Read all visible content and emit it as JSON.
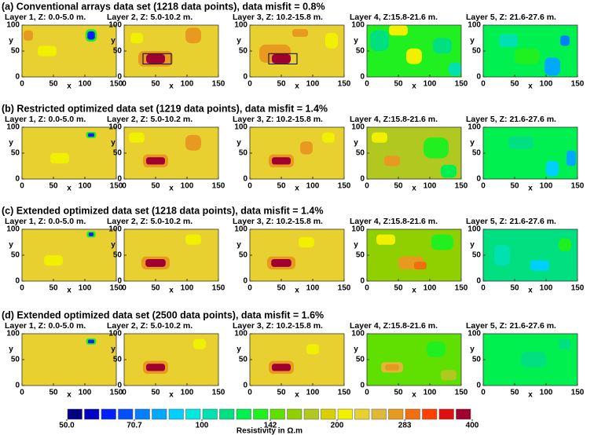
{
  "rows": [
    {
      "title": "(a) Conventional arrays data set (1218 data points), data misfit = 0.8%",
      "panels": [
        {
          "title": "Layer 1, Z: 0.0-5.0 m.",
          "background": 230,
          "anomalies": [
            {
              "x": 40,
              "y": 50,
              "w": 30,
              "h": 20,
              "value": 200
            },
            {
              "x": 10,
              "y": 80,
              "w": 15,
              "h": 20,
              "value": 260
            },
            {
              "x": 110,
              "y": 80,
              "w": 18,
              "h": 24,
              "value": 140
            },
            {
              "x": 110,
              "y": 80,
              "w": 12,
              "h": 16,
              "value": 60
            }
          ]
        },
        {
          "title": "Layer 2, Z: 5.0-10.2 m.",
          "background": 220,
          "anomalies": [
            {
              "x": 110,
              "y": 80,
              "w": 25,
              "h": 30,
              "value": 270
            },
            {
              "x": 20,
              "y": 75,
              "w": 20,
              "h": 20,
              "value": 200
            },
            {
              "x": 50,
              "y": 35,
              "w": 55,
              "h": 30,
              "value": 280
            },
            {
              "x": 50,
              "y": 35,
              "w": 30,
              "h": 18,
              "value": 390
            }
          ],
          "target": {
            "x": 30,
            "y": 25,
            "w": 45,
            "h": 20
          }
        },
        {
          "title": "Layer 3, Z: 10.2-15.8 m.",
          "background": 220,
          "anomalies": [
            {
              "x": 130,
              "y": 70,
              "w": 20,
              "h": 30,
              "value": 200
            },
            {
              "x": 80,
              "y": 85,
              "w": 25,
              "h": 15,
              "value": 260
            },
            {
              "x": 40,
              "y": 45,
              "w": 50,
              "h": 35,
              "value": 280
            },
            {
              "x": 50,
              "y": 35,
              "w": 30,
              "h": 18,
              "value": 380
            }
          ],
          "target": {
            "x": 30,
            "y": 25,
            "w": 45,
            "h": 20
          }
        },
        {
          "title": "Layer 4, Z:15.8-21.6 m.",
          "background": 140,
          "anomalies": [
            {
              "x": 20,
              "y": 70,
              "w": 30,
              "h": 40,
              "value": 110
            },
            {
              "x": 75,
              "y": 40,
              "w": 25,
              "h": 30,
              "value": 210
            },
            {
              "x": 120,
              "y": 60,
              "w": 30,
              "h": 30,
              "value": 115
            },
            {
              "x": 50,
              "y": 90,
              "w": 30,
              "h": 20,
              "value": 200
            },
            {
              "x": 140,
              "y": 15,
              "w": 20,
              "h": 25,
              "value": 105
            }
          ]
        },
        {
          "title": "Layer 5, Z: 21.6-27.6 m.",
          "background": 120,
          "anomalies": [
            {
              "x": 70,
              "y": 40,
              "w": 40,
              "h": 30,
              "value": 130
            },
            {
              "x": 40,
              "y": 70,
              "w": 30,
              "h": 25,
              "value": 100
            },
            {
              "x": 110,
              "y": 20,
              "w": 25,
              "h": 35,
              "value": 80
            },
            {
              "x": 130,
              "y": 70,
              "w": 15,
              "h": 20,
              "value": 75
            }
          ]
        }
      ]
    },
    {
      "title": "(b) Restricted optimized data set (1219 data points), data misfit = 1.4%",
      "panels": [
        {
          "title": "Layer 1, Z: 0.0-5.0 m.",
          "background": 230,
          "anomalies": [
            {
              "x": 60,
              "y": 40,
              "w": 30,
              "h": 20,
              "value": 200
            },
            {
              "x": 110,
              "y": 85,
              "w": 16,
              "h": 12,
              "value": 130
            },
            {
              "x": 110,
              "y": 85,
              "w": 10,
              "h": 7,
              "value": 60
            }
          ]
        },
        {
          "title": "Layer 2, Z: 5.0-10.2 m.",
          "background": 230,
          "anomalies": [
            {
              "x": 20,
              "y": 80,
              "w": 25,
              "h": 20,
              "value": 200
            },
            {
              "x": 110,
              "y": 70,
              "w": 25,
              "h": 30,
              "value": 260
            },
            {
              "x": 50,
              "y": 35,
              "w": 40,
              "h": 25,
              "value": 280
            },
            {
              "x": 50,
              "y": 35,
              "w": 30,
              "h": 14,
              "value": 400
            }
          ]
        },
        {
          "title": "Layer 3, Z: 10.2-15.8 m.",
          "background": 230,
          "anomalies": [
            {
              "x": 125,
              "y": 80,
              "w": 20,
              "h": 20,
              "value": 200
            },
            {
              "x": 90,
              "y": 60,
              "w": 20,
              "h": 25,
              "value": 260
            },
            {
              "x": 50,
              "y": 35,
              "w": 40,
              "h": 25,
              "value": 280
            },
            {
              "x": 50,
              "y": 35,
              "w": 30,
              "h": 14,
              "value": 400
            }
          ]
        },
        {
          "title": "Layer 4, Z:15.8-21.6 m.",
          "background": 170,
          "anomalies": [
            {
              "x": 110,
              "y": 60,
              "w": 40,
              "h": 40,
              "value": 140
            },
            {
              "x": 20,
              "y": 80,
              "w": 25,
              "h": 20,
              "value": 200
            },
            {
              "x": 130,
              "y": 15,
              "w": 25,
              "h": 25,
              "value": 125
            },
            {
              "x": 40,
              "y": 35,
              "w": 25,
              "h": 20,
              "value": 260
            }
          ]
        },
        {
          "title": "Layer 5, Z: 21.6-27.6 m.",
          "background": 120,
          "anomalies": [
            {
              "x": 60,
              "y": 70,
              "w": 40,
              "h": 25,
              "value": 110
            },
            {
              "x": 110,
              "y": 20,
              "w": 20,
              "h": 30,
              "value": 85
            },
            {
              "x": 140,
              "y": 40,
              "w": 15,
              "h": 30,
              "value": 80
            }
          ]
        }
      ]
    },
    {
      "title": "(c) Extended optimized data set (1218 data points), data misfit = 1.4%",
      "panels": [
        {
          "title": "Layer 1, Z: 0.0-5.0 m.",
          "background": 230,
          "anomalies": [
            {
              "x": 50,
              "y": 40,
              "w": 30,
              "h": 20,
              "value": 200
            },
            {
              "x": 110,
              "y": 90,
              "w": 14,
              "h": 12,
              "value": 130
            },
            {
              "x": 110,
              "y": 90,
              "w": 8,
              "h": 7,
              "value": 60
            }
          ]
        },
        {
          "title": "Layer 2, Z: 5.0-10.2 m.",
          "background": 230,
          "anomalies": [
            {
              "x": 110,
              "y": 80,
              "w": 25,
              "h": 20,
              "value": 200
            },
            {
              "x": 50,
              "y": 35,
              "w": 45,
              "h": 25,
              "value": 280
            },
            {
              "x": 50,
              "y": 35,
              "w": 32,
              "h": 15,
              "value": 400
            }
          ]
        },
        {
          "title": "Layer 3, Z: 10.2-15.8 m.",
          "background": 230,
          "anomalies": [
            {
              "x": 90,
              "y": 75,
              "w": 25,
              "h": 20,
              "value": 200
            },
            {
              "x": 50,
              "y": 35,
              "w": 45,
              "h": 25,
              "value": 280
            },
            {
              "x": 50,
              "y": 35,
              "w": 32,
              "h": 15,
              "value": 400
            }
          ]
        },
        {
          "title": "Layer 4, Z:15.8-21.6 m.",
          "background": 160,
          "anomalies": [
            {
              "x": 120,
              "y": 75,
              "w": 35,
              "h": 30,
              "value": 130
            },
            {
              "x": 30,
              "y": 80,
              "w": 30,
              "h": 20,
              "value": 210
            },
            {
              "x": 70,
              "y": 35,
              "w": 40,
              "h": 25,
              "value": 270
            },
            {
              "x": 85,
              "y": 30,
              "w": 20,
              "h": 15,
              "value": 300
            }
          ]
        },
        {
          "title": "Layer 5, Z: 21.6-27.6 m.",
          "background": 115,
          "anomalies": [
            {
              "x": 30,
              "y": 50,
              "w": 25,
              "h": 40,
              "value": 100
            },
            {
              "x": 90,
              "y": 30,
              "w": 30,
              "h": 20,
              "value": 90
            },
            {
              "x": 130,
              "y": 70,
              "w": 20,
              "h": 25,
              "value": 135
            }
          ]
        }
      ]
    },
    {
      "title": "(d) Extended optimized data set (2500 data points), data misfit = 1.6%",
      "panels": [
        {
          "title": "Layer 1, Z: 0.0-5.0 m.",
          "background": 230,
          "anomalies": [
            {
              "x": 110,
              "y": 85,
              "w": 16,
              "h": 12,
              "value": 130
            },
            {
              "x": 110,
              "y": 85,
              "w": 10,
              "h": 7,
              "value": 60
            }
          ]
        },
        {
          "title": "Layer 2, Z: 5.0-10.2 m.",
          "background": 230,
          "anomalies": [
            {
              "x": 120,
              "y": 80,
              "w": 20,
              "h": 20,
              "value": 200
            },
            {
              "x": 50,
              "y": 35,
              "w": 40,
              "h": 25,
              "value": 280
            },
            {
              "x": 50,
              "y": 35,
              "w": 30,
              "h": 14,
              "value": 400
            }
          ]
        },
        {
          "title": "Layer 3, Z: 10.2-15.8 m.",
          "background": 230,
          "anomalies": [
            {
              "x": 100,
              "y": 70,
              "w": 20,
              "h": 20,
              "value": 200
            },
            {
              "x": 50,
              "y": 35,
              "w": 40,
              "h": 25,
              "value": 280
            },
            {
              "x": 50,
              "y": 35,
              "w": 30,
              "h": 14,
              "value": 400
            }
          ]
        },
        {
          "title": "Layer 4, Z:15.8-21.6 m.",
          "background": 150,
          "anomalies": [
            {
              "x": 110,
              "y": 70,
              "w": 30,
              "h": 30,
              "value": 135
            },
            {
              "x": 130,
              "y": 20,
              "w": 25,
              "h": 20,
              "value": 170
            },
            {
              "x": 40,
              "y": 35,
              "w": 35,
              "h": 20,
              "value": 240
            },
            {
              "x": 40,
              "y": 35,
              "w": 22,
              "h": 12,
              "value": 260
            }
          ]
        },
        {
          "title": "Layer 5, Z: 21.6-27.6 m.",
          "background": 125,
          "anomalies": [
            {
              "x": 80,
              "y": 50,
              "w": 40,
              "h": 30,
              "value": 115
            },
            {
              "x": 130,
              "y": 80,
              "w": 20,
              "h": 20,
              "value": 110
            }
          ]
        }
      ]
    }
  ],
  "axes": {
    "x_label": "x",
    "y_label": "y",
    "xlim": [
      0,
      150
    ],
    "ylim": [
      0,
      100
    ],
    "xticks": [
      0,
      50,
      100,
      150
    ],
    "yticks": [
      0,
      50,
      100
    ]
  },
  "colorbar": {
    "title": "Resistivity in Ω.m",
    "lim": [
      50,
      400
    ],
    "log": true,
    "ticks": [
      {
        "value": 50,
        "label": "50.0"
      },
      70.7,
      100,
      142,
      200,
      283,
      400
    ],
    "colors": [
      "#000080",
      "#0000c0",
      "#0020ff",
      "#0050ff",
      "#0080ff",
      "#00a8ff",
      "#00d0ff",
      "#00e8e0",
      "#00e0b0",
      "#00e080",
      "#00f050",
      "#20f020",
      "#60e000",
      "#90d000",
      "#b0c820",
      "#d8d000",
      "#f0f000",
      "#e8d030",
      "#e0b838",
      "#e89a20",
      "#f07010",
      "#ff4000",
      "#e01010",
      "#a00030"
    ]
  }
}
